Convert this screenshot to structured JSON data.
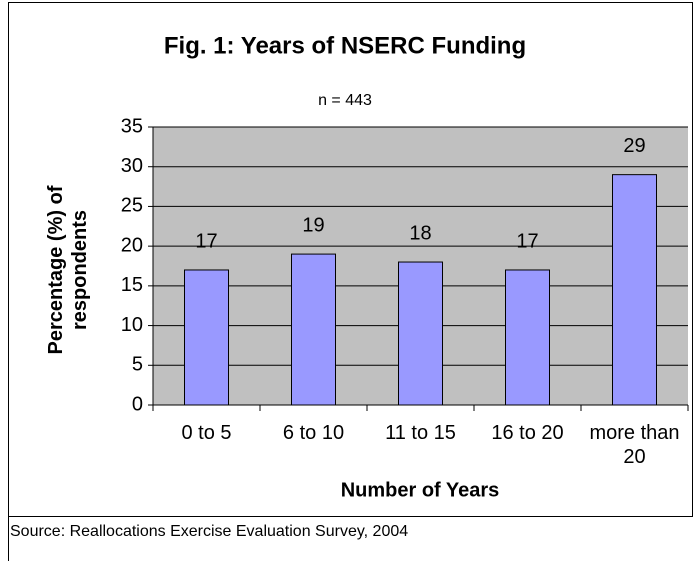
{
  "chart_data": {
    "type": "bar",
    "title": "Fig. 1: Years of NSERC Funding",
    "subtitle": "n = 443",
    "categories": [
      "0 to 5",
      "6 to 10",
      "11 to 15",
      "16 to 20",
      "more than 20"
    ],
    "values": [
      17,
      19,
      18,
      17,
      29
    ],
    "color": "#9999ff",
    "ylim": [
      0,
      35
    ],
    "yticks": [
      0,
      5,
      10,
      15,
      20,
      25,
      30,
      35
    ],
    "grid": true,
    "xlabel": "Number of Years",
    "ylabel": "Percentage (%) of respondents",
    "source": "Source: Reallocations Exercise Evaluation Survey, 2004"
  }
}
